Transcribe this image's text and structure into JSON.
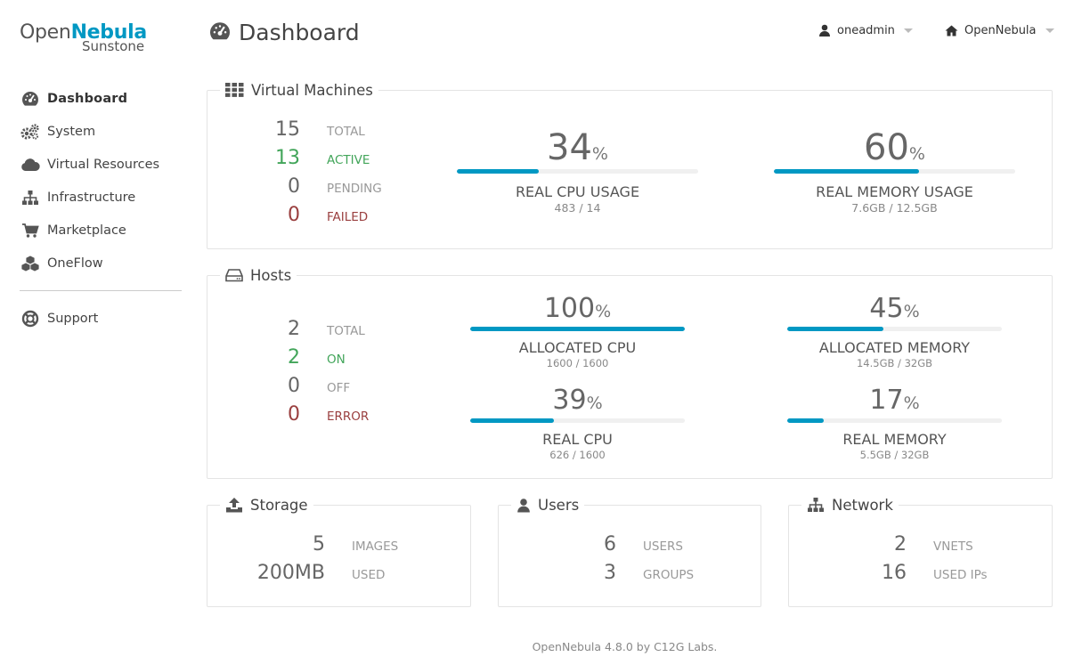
{
  "brand": {
    "name_plain": "Open",
    "name_bold": "Nebula",
    "product": "Sunstone"
  },
  "sidebar": {
    "items": [
      {
        "label": "Dashboard",
        "icon": "dashboard-icon"
      },
      {
        "label": "System",
        "icon": "cogs-icon"
      },
      {
        "label": "Virtual Resources",
        "icon": "cloud-icon"
      },
      {
        "label": "Infrastructure",
        "icon": "sitemap-icon"
      },
      {
        "label": "Marketplace",
        "icon": "cart-icon"
      },
      {
        "label": "OneFlow",
        "icon": "cubes-icon"
      }
    ],
    "support": {
      "label": "Support",
      "icon": "life-ring-icon"
    }
  },
  "header": {
    "title": "Dashboard",
    "user": "oneadmin",
    "zone": "OpenNebula"
  },
  "vms": {
    "title": "Virtual Machines",
    "total": {
      "value": "15",
      "label": "TOTAL"
    },
    "active": {
      "value": "13",
      "label": "ACTIVE"
    },
    "pending": {
      "value": "0",
      "label": "PENDING"
    },
    "failed": {
      "value": "0",
      "label": "FAILED"
    },
    "cpu": {
      "percent": 34,
      "percent_text": "34",
      "caption": "REAL CPU USAGE",
      "detail": "483 / 14"
    },
    "memory": {
      "percent": 60,
      "percent_text": "60",
      "caption": "REAL MEMORY USAGE",
      "detail": "7.6GB / 12.5GB"
    }
  },
  "hosts": {
    "title": "Hosts",
    "total": {
      "value": "2",
      "label": "TOTAL"
    },
    "on": {
      "value": "2",
      "label": "ON"
    },
    "off": {
      "value": "0",
      "label": "OFF"
    },
    "error": {
      "value": "0",
      "label": "ERROR"
    },
    "alloc_cpu": {
      "percent": 100,
      "percent_text": "100",
      "caption": "ALLOCATED CPU",
      "detail": "1600 / 1600"
    },
    "alloc_mem": {
      "percent": 45,
      "percent_text": "45",
      "caption": "ALLOCATED MEMORY",
      "detail": "14.5GB / 32GB"
    },
    "real_cpu": {
      "percent": 39,
      "percent_text": "39",
      "caption": "REAL CPU",
      "detail": "626 / 1600"
    },
    "real_mem": {
      "percent": 17,
      "percent_text": "17",
      "caption": "REAL MEMORY",
      "detail": "5.5GB / 32GB"
    }
  },
  "storage": {
    "title": "Storage",
    "images": {
      "value": "5",
      "label": "IMAGES"
    },
    "used": {
      "value": "200MB",
      "label": "USED"
    }
  },
  "users": {
    "title": "Users",
    "users": {
      "value": "6",
      "label": "USERS"
    },
    "groups": {
      "value": "3",
      "label": "GROUPS"
    }
  },
  "network": {
    "title": "Network",
    "vnets": {
      "value": "2",
      "label": "VNETS"
    },
    "used_ips": {
      "value": "16",
      "label": "USED IPs"
    }
  },
  "percent_symbol": "%",
  "colors": {
    "accent": "#0098c3",
    "ok": "#42a55a",
    "error": "#9a3f3f"
  },
  "footer": "OpenNebula 4.8.0 by C12G Labs."
}
